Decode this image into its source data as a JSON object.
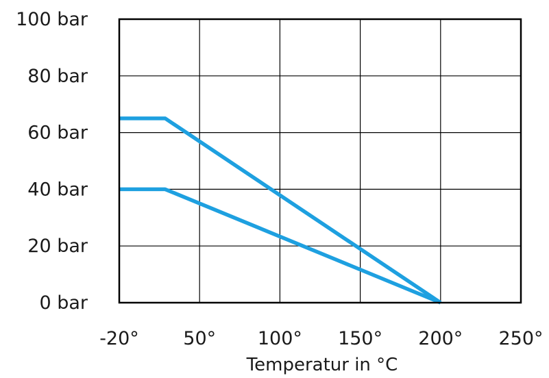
{
  "chart_data": {
    "type": "line",
    "xlabel": "Temperatur in °C",
    "x_ticks": [
      "-20°",
      "50°",
      "100°",
      "150°",
      "200°",
      "250°"
    ],
    "y_ticks": [
      "0 bar",
      "20 bar",
      "40 bar",
      "60 bar",
      "80 bar",
      "100 bar"
    ],
    "x_tick_values": [
      -20,
      50,
      100,
      150,
      200,
      250
    ],
    "y_tick_values": [
      0,
      20,
      40,
      60,
      80,
      100
    ],
    "ylim": [
      0,
      100
    ],
    "grid": true,
    "line_color": "#1ea0e0",
    "series": [
      {
        "x": [
          -20,
          20,
          200
        ],
        "y": [
          65,
          65,
          0
        ]
      },
      {
        "x": [
          -20,
          20,
          200
        ],
        "y": [
          40,
          40,
          0
        ]
      }
    ]
  }
}
